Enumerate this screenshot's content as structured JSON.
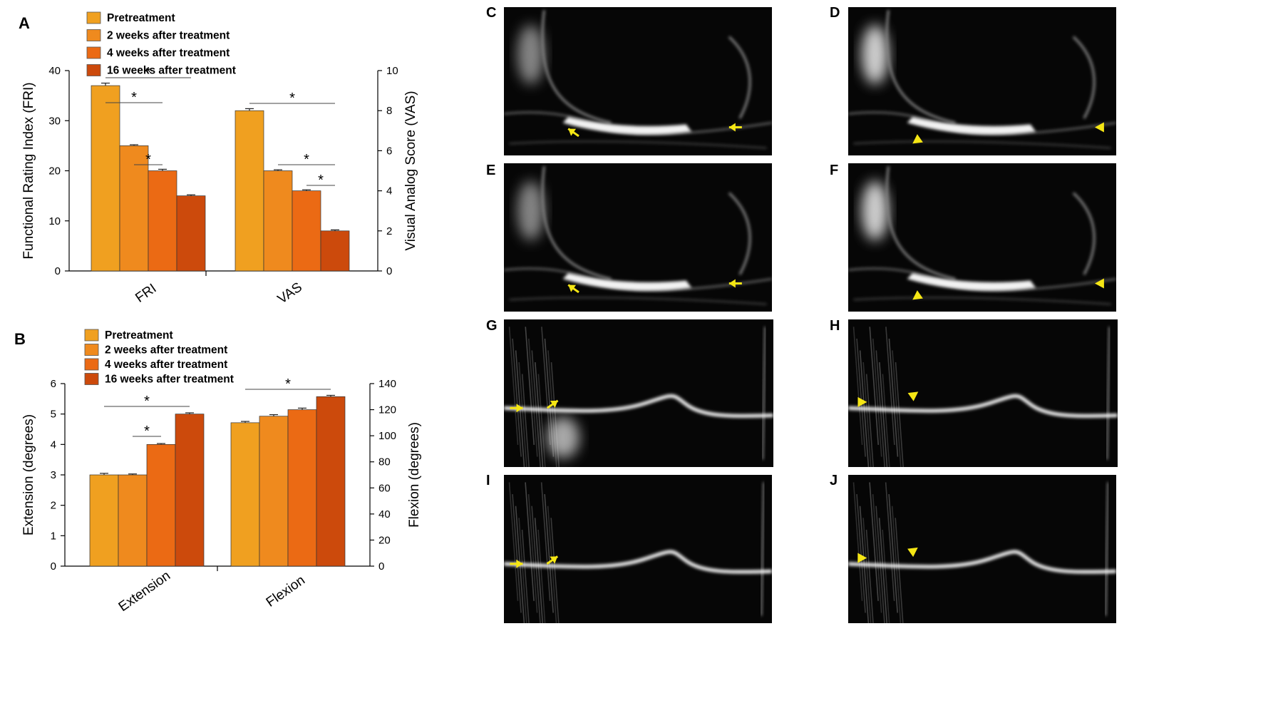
{
  "colors": {
    "pretreatment": "#F0A020",
    "two_weeks": "#EF8A1E",
    "four_weeks": "#EB6A14",
    "sixteen_weeks": "#CC4A0C",
    "marker": "#F5E614"
  },
  "chart_data": [
    {
      "panel_label": "A",
      "type": "bar",
      "legend": [
        "Pretreatment",
        "2 weeks after treatment",
        "4 weeks after treatment",
        "16 weeks after treatment"
      ],
      "groups": [
        {
          "name": "FRI",
          "axis": "left",
          "values": [
            37,
            25,
            20,
            15
          ],
          "errors": [
            0.5,
            0.2,
            0.3,
            0.2
          ],
          "significance": [
            {
              "from": 0,
              "to": 3,
              "label": "*"
            },
            {
              "from": 0,
              "to": 2,
              "label": "*"
            },
            {
              "from": 1,
              "to": 2,
              "label": "*"
            }
          ]
        },
        {
          "name": "VAS",
          "axis": "right",
          "values": [
            8,
            5,
            4,
            2
          ],
          "errors": [
            0.1,
            0.05,
            0.05,
            0.05
          ],
          "significance": [
            {
              "from": 0,
              "to": 3,
              "label": "*"
            },
            {
              "from": 1,
              "to": 3,
              "label": "*"
            },
            {
              "from": 2,
              "to": 3,
              "label": "*"
            }
          ]
        }
      ],
      "ylabel_left": "Functional Rating Index (FRI)",
      "ylabel_right": "Visual Analog Score (VAS)",
      "ylim_left": [
        0,
        40
      ],
      "ylim_right": [
        0,
        10
      ],
      "yticks_left": [
        0,
        10,
        20,
        30,
        40
      ],
      "yticks_right": [
        0,
        2,
        4,
        6,
        8,
        10
      ]
    },
    {
      "panel_label": "B",
      "type": "bar",
      "legend": [
        "Pretreatment",
        "2 weeks after treatment",
        "4 weeks after treatment",
        "16 weeks after treatment"
      ],
      "groups": [
        {
          "name": "Extension",
          "axis": "left",
          "values": [
            3,
            3,
            4,
            5
          ],
          "errors": [
            0.05,
            0.03,
            0.03,
            0.04
          ],
          "significance": [
            {
              "from": 0,
              "to": 3,
              "label": "*"
            },
            {
              "from": 1,
              "to": 2,
              "label": "*"
            }
          ]
        },
        {
          "name": "Flexion",
          "axis": "right",
          "values": [
            110,
            115,
            120,
            130
          ],
          "errors": [
            1,
            1.2,
            1.2,
            1
          ],
          "significance": [
            {
              "from": 0,
              "to": 3,
              "label": "*"
            }
          ]
        }
      ],
      "ylabel_left": "Extension (degrees)",
      "ylabel_right": "Flexion (degrees)",
      "ylim_left": [
        0,
        6
      ],
      "ylim_right": [
        0,
        140
      ],
      "yticks_left": [
        0,
        1,
        2,
        3,
        4,
        5,
        6
      ],
      "yticks_right": [
        0,
        20,
        40,
        60,
        80,
        100,
        120,
        140
      ]
    }
  ],
  "mri_panels": [
    {
      "label": "C",
      "marker": "arrow"
    },
    {
      "label": "D",
      "marker": "arrowhead"
    },
    {
      "label": "E",
      "marker": "arrow"
    },
    {
      "label": "F",
      "marker": "arrowhead"
    },
    {
      "label": "G",
      "marker": "arrow"
    },
    {
      "label": "H",
      "marker": "arrowhead"
    },
    {
      "label": "I",
      "marker": "arrow"
    },
    {
      "label": "J",
      "marker": "arrowhead"
    }
  ]
}
